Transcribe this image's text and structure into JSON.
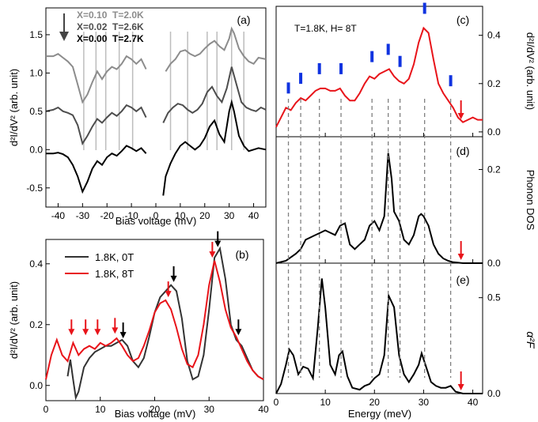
{
  "chart_data": [
    {
      "panel": "a",
      "type": "line",
      "panel_label": "(a)",
      "xlabel": "Bias voltage (mV)",
      "ylabel": "d²I/dV² (arb. unit)",
      "xlim": [
        -45,
        45
      ],
      "ylim": [
        -0.75,
        1.85
      ],
      "xticks": [
        -40,
        -30,
        -20,
        -10,
        0,
        10,
        20,
        30,
        40
      ],
      "yticks": [
        -0.5,
        0.0,
        0.5,
        1.0,
        1.5
      ],
      "ytick_labels": [
        "-0.5",
        "0.0",
        "0.5",
        "1.0",
        "1.5"
      ],
      "legend_position": "top-left",
      "series": [
        {
          "name": "X=0.10  T=2.0K",
          "color": "#8c8c8c",
          "neg_x": [
            -45,
            -42,
            -40,
            -38,
            -36,
            -34,
            -32,
            -30,
            -28,
            -26,
            -24,
            -22,
            -20,
            -18,
            -16,
            -14,
            -12,
            -10,
            -8,
            -6,
            -4
          ],
          "neg_y": [
            1.22,
            1.22,
            1.25,
            1.2,
            1.15,
            1.08,
            0.85,
            0.62,
            0.72,
            0.88,
            1.02,
            0.92,
            1.02,
            1.08,
            1.05,
            1.12,
            1.22,
            1.18,
            1.12,
            1.18,
            1.05
          ],
          "pos_x": [
            4,
            6,
            8,
            10,
            12,
            14,
            16,
            18,
            20,
            22,
            24,
            26,
            28,
            30,
            31,
            32,
            34,
            36,
            38,
            40,
            42,
            45
          ],
          "pos_y": [
            1.02,
            1.12,
            1.18,
            1.28,
            1.3,
            1.25,
            1.22,
            1.25,
            1.32,
            1.38,
            1.42,
            1.35,
            1.3,
            1.45,
            1.58,
            1.52,
            1.32,
            1.22,
            1.15,
            1.12,
            1.2,
            1.18
          ]
        },
        {
          "name": "X=0.02  T=2.6K",
          "color": "#4d4d4d",
          "neg_x": [
            -45,
            -42,
            -40,
            -38,
            -36,
            -34,
            -32,
            -30,
            -28,
            -26,
            -24,
            -22,
            -20,
            -18,
            -16,
            -14,
            -12,
            -10,
            -8,
            -6,
            -4
          ],
          "neg_y": [
            0.5,
            0.52,
            0.55,
            0.5,
            0.48,
            0.45,
            0.32,
            0.08,
            0.18,
            0.3,
            0.4,
            0.35,
            0.42,
            0.48,
            0.44,
            0.5,
            0.58,
            0.55,
            0.5,
            0.55,
            0.42
          ],
          "pos_x": [
            3,
            5,
            7,
            9,
            11,
            13,
            15,
            17,
            19,
            21,
            23,
            25,
            27,
            29,
            31,
            33,
            35,
            37,
            39,
            41,
            43,
            45
          ],
          "pos_y": [
            0.35,
            0.48,
            0.55,
            0.6,
            0.58,
            0.52,
            0.48,
            0.52,
            0.6,
            0.75,
            0.82,
            0.7,
            0.62,
            0.8,
            1.08,
            0.85,
            0.62,
            0.55,
            0.52,
            0.5,
            0.55,
            0.52
          ]
        },
        {
          "name": "X=0.00  T=2.7K",
          "color": "#000000",
          "neg_x": [
            -45,
            -42,
            -40,
            -38,
            -36,
            -34,
            -32,
            -30,
            -28,
            -26,
            -24,
            -22,
            -20,
            -18,
            -16,
            -14,
            -12,
            -10,
            -8,
            -6,
            -4
          ],
          "neg_y": [
            -0.05,
            -0.05,
            -0.04,
            -0.06,
            -0.1,
            -0.2,
            -0.35,
            -0.55,
            -0.42,
            -0.25,
            -0.15,
            -0.2,
            -0.1,
            -0.05,
            -0.08,
            -0.02,
            0.05,
            0.02,
            -0.02,
            0.02,
            -0.05
          ],
          "pos_x": [
            3,
            4,
            6,
            8,
            10,
            12,
            14,
            16,
            18,
            20,
            22,
            24,
            26,
            28,
            30,
            31,
            32,
            34,
            36,
            38,
            40,
            42,
            45
          ],
          "pos_y": [
            -0.6,
            -0.35,
            -0.18,
            -0.05,
            0.05,
            0.1,
            0.05,
            0.0,
            0.05,
            0.15,
            0.3,
            0.38,
            0.2,
            0.1,
            0.5,
            0.62,
            0.5,
            0.18,
            0.05,
            -0.02,
            0.0,
            0.02,
            0.0
          ]
        }
      ],
      "vlines_mV": [
        -29.5,
        -24.5,
        -20.5,
        -15,
        -9.5,
        6,
        13,
        21,
        25,
        31,
        36
      ]
    },
    {
      "panel": "b",
      "type": "line",
      "panel_label": "(b)",
      "xlabel": "Bias voltage (mV)",
      "ylabel": "d²I/dV² (arb. unit)",
      "xlim": [
        0,
        40
      ],
      "ylim": [
        -0.05,
        0.48
      ],
      "xticks": [
        0,
        10,
        20,
        30,
        40
      ],
      "yticks": [
        0.0,
        0.2,
        0.4
      ],
      "ytick_labels": [
        "0.0",
        "0.2",
        "0.4"
      ],
      "legend_position": "top-left",
      "series": [
        {
          "name": "1.8K, 0T",
          "color": "#333333",
          "x": [
            4,
            4.5,
            5,
            5.5,
            6,
            7,
            8,
            9,
            10,
            11,
            12,
            13,
            14,
            15,
            16,
            17,
            18,
            19,
            20,
            21,
            22,
            23,
            24,
            25,
            26,
            27,
            28,
            29,
            30,
            31,
            32,
            33,
            34,
            35,
            36,
            37,
            38,
            39,
            40
          ],
          "y": [
            0.03,
            0.085,
            0.02,
            -0.04,
            -0.02,
            0.06,
            0.09,
            0.11,
            0.12,
            0.13,
            0.13,
            0.14,
            0.15,
            0.13,
            0.08,
            0.06,
            0.09,
            0.16,
            0.24,
            0.29,
            0.31,
            0.33,
            0.31,
            0.22,
            0.08,
            0.02,
            0.03,
            0.1,
            0.25,
            0.42,
            0.45,
            0.35,
            0.2,
            0.15,
            0.13,
            0.09,
            0.05,
            0.03,
            0.02
          ]
        },
        {
          "name": "1.8K, 8T",
          "color": "#e8141a",
          "x": [
            0,
            1,
            2,
            3,
            4,
            5,
            6,
            7,
            8,
            9,
            10,
            11,
            12,
            13,
            14,
            15,
            16,
            17,
            18,
            19,
            20,
            21,
            22,
            23,
            24,
            25,
            26,
            27,
            28,
            29,
            30,
            31,
            32,
            33,
            34,
            35,
            36,
            37,
            38,
            39,
            40
          ],
          "y": [
            0.02,
            0.1,
            0.15,
            0.1,
            0.08,
            0.14,
            0.1,
            0.12,
            0.13,
            0.12,
            0.14,
            0.13,
            0.14,
            0.155,
            0.13,
            0.1,
            0.08,
            0.09,
            0.13,
            0.18,
            0.24,
            0.27,
            0.28,
            0.25,
            0.19,
            0.12,
            0.07,
            0.06,
            0.1,
            0.2,
            0.33,
            0.41,
            0.34,
            0.25,
            0.19,
            0.16,
            0.12,
            0.08,
            0.05,
            0.03,
            0.02
          ]
        }
      ],
      "arrows": [
        {
          "x": 4.7,
          "y": 0.165,
          "color": "#e8141a"
        },
        {
          "x": 7.3,
          "y": 0.165,
          "color": "#e8141a"
        },
        {
          "x": 9.5,
          "y": 0.165,
          "color": "#e8141a"
        },
        {
          "x": 12.7,
          "y": 0.17,
          "color": "#e8141a"
        },
        {
          "x": 14.2,
          "y": 0.155,
          "color": "#000000"
        },
        {
          "x": 22.5,
          "y": 0.29,
          "color": "#e8141a"
        },
        {
          "x": 23.5,
          "y": 0.34,
          "color": "#000000"
        },
        {
          "x": 30.6,
          "y": 0.42,
          "color": "#e8141a"
        },
        {
          "x": 31.6,
          "y": 0.455,
          "color": "#000000"
        },
        {
          "x": 35.4,
          "y": 0.165,
          "color": "#000000"
        }
      ]
    },
    {
      "panel": "c",
      "type": "line",
      "panel_label": "(c)",
      "annotation": "T=1.8K, H= 8T",
      "ylabel": "d²I/dV² (arb. unit)",
      "xlim": [
        0,
        42
      ],
      "ylim": [
        -0.02,
        0.52
      ],
      "yticks": [
        0.0,
        0.2,
        0.4
      ],
      "ytick_labels": [
        "0.0",
        "0.2",
        "0.4"
      ],
      "series": [
        {
          "name": "",
          "color": "#e8141a",
          "x": [
            0,
            1,
            2,
            3,
            4,
            5,
            6,
            7,
            8,
            9,
            10,
            11,
            12,
            13,
            14,
            15,
            16,
            17,
            18,
            19,
            20,
            21,
            22,
            23,
            24,
            25,
            26,
            27,
            28,
            29,
            30,
            31,
            32,
            33,
            34,
            35,
            36,
            37,
            38,
            39,
            40,
            41,
            42
          ],
          "y": [
            0.02,
            0.06,
            0.1,
            0.09,
            0.12,
            0.14,
            0.13,
            0.15,
            0.17,
            0.18,
            0.18,
            0.17,
            0.17,
            0.18,
            0.15,
            0.13,
            0.13,
            0.16,
            0.2,
            0.23,
            0.22,
            0.24,
            0.25,
            0.26,
            0.23,
            0.21,
            0.2,
            0.22,
            0.28,
            0.37,
            0.43,
            0.41,
            0.3,
            0.2,
            0.16,
            0.13,
            0.1,
            0.06,
            0.04,
            0.05,
            0.06,
            0.05,
            0.05
          ]
        }
      ],
      "markers": [
        2.5,
        5,
        8.8,
        13.2,
        19.5,
        22.8,
        25.2,
        30.2,
        35.5
      ],
      "red_arrow": 37.6
    },
    {
      "panel": "d",
      "type": "line",
      "panel_label": "(d)",
      "ylabel": "Phonon DOS",
      "xlim": [
        0,
        42
      ],
      "ylim": [
        0,
        0.27
      ],
      "yticks": [
        0.0,
        0.2
      ],
      "ytick_labels": [
        "0.0",
        "0.2"
      ],
      "series": [
        {
          "name": "",
          "color": "#000000",
          "x": [
            0,
            2,
            4,
            5,
            6,
            7,
            8,
            9,
            10,
            11,
            12,
            13,
            14,
            15,
            16,
            17,
            18,
            19,
            20,
            21,
            22,
            22.8,
            23.5,
            24,
            25,
            26,
            27,
            28,
            29,
            29.5,
            30,
            31,
            32,
            33,
            34,
            35,
            36,
            37,
            38,
            40,
            42
          ],
          "y": [
            0,
            0.005,
            0.02,
            0.03,
            0.05,
            0.055,
            0.06,
            0.065,
            0.07,
            0.065,
            0.06,
            0.08,
            0.085,
            0.04,
            0.03,
            0.04,
            0.05,
            0.08,
            0.09,
            0.07,
            0.1,
            0.235,
            0.18,
            0.11,
            0.09,
            0.05,
            0.04,
            0.06,
            0.1,
            0.105,
            0.1,
            0.08,
            0.04,
            0.02,
            0.01,
            0.005,
            0.002,
            0.001,
            0,
            0,
            0
          ]
        }
      ],
      "red_arrow": 37.6
    },
    {
      "panel": "e",
      "type": "line",
      "panel_label": "(e)",
      "ylabel": "α²F",
      "xlabel": "Energy (meV)",
      "xlim": [
        0,
        42
      ],
      "ylim": [
        0,
        0.68
      ],
      "xticks": [
        0,
        10,
        20,
        30,
        40
      ],
      "yticks": [
        0.0,
        0.5
      ],
      "ytick_labels": [
        "0.0",
        "0.5"
      ],
      "series": [
        {
          "name": "",
          "color": "#000000",
          "x": [
            0,
            1,
            2,
            2.7,
            3.5,
            4.5,
            5.5,
            6.5,
            7.5,
            8.5,
            9.3,
            10,
            11,
            12,
            12.8,
            13.5,
            14.5,
            15.5,
            17,
            18,
            19,
            20,
            21,
            22,
            22.9,
            24,
            25,
            26,
            27,
            28,
            29,
            29.6,
            30.5,
            31.5,
            32.5,
            33.5,
            34.5,
            35.5,
            36.5,
            38,
            40,
            42
          ],
          "y": [
            0,
            0.05,
            0.15,
            0.23,
            0.2,
            0.1,
            0.14,
            0.13,
            0.08,
            0.35,
            0.6,
            0.45,
            0.15,
            0.1,
            0.2,
            0.22,
            0.09,
            0.03,
            0.02,
            0.04,
            0.05,
            0.08,
            0.1,
            0.2,
            0.51,
            0.45,
            0.2,
            0.1,
            0.06,
            0.1,
            0.15,
            0.21,
            0.14,
            0.06,
            0.04,
            0.03,
            0.03,
            0.04,
            0.01,
            0,
            0,
            0
          ]
        }
      ],
      "red_arrow": 37.6
    }
  ],
  "shared_vlines_meV": [
    2.5,
    5,
    8.8,
    13.2,
    19.5,
    22.8,
    25.2,
    30.2,
    35.5
  ]
}
